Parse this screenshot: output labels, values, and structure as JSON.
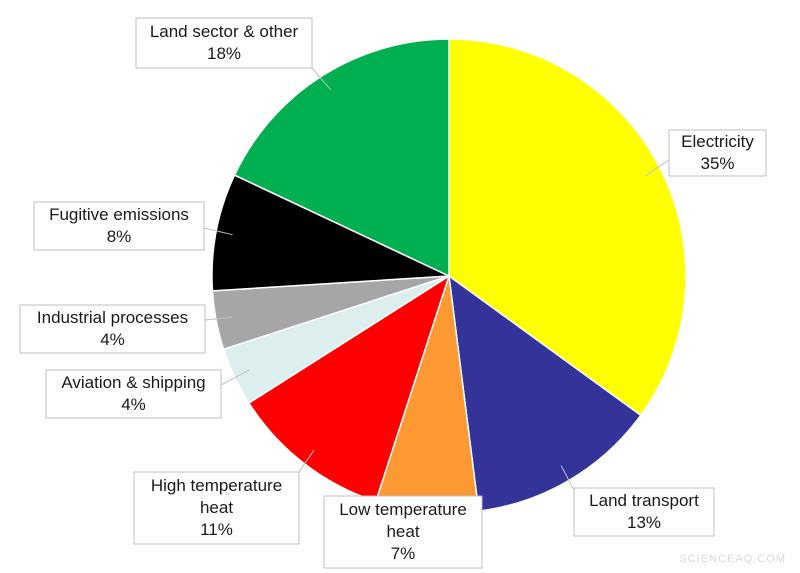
{
  "chart_data": {
    "type": "pie",
    "start_angle_deg": 0,
    "direction": "clockwise",
    "slices": [
      {
        "label": "Electricity",
        "value": 35,
        "value_label": "35%",
        "color": "#ffff00"
      },
      {
        "label": "Land transport",
        "value": 13,
        "value_label": "13%",
        "color": "#333399"
      },
      {
        "label": "Low temperature heat",
        "value": 7,
        "value_label": "7%",
        "color": "#ff9933"
      },
      {
        "label": "High temperature heat",
        "value": 11,
        "value_label": "11%",
        "color": "#ff0000"
      },
      {
        "label": "Aviation & shipping",
        "value": 4,
        "value_label": "4%",
        "color": "#ddeeee"
      },
      {
        "label": "Industrial processes",
        "value": 4,
        "value_label": "4%",
        "color": "#a6a6a6"
      },
      {
        "label": "Fugitive emissions",
        "value": 8,
        "value_label": "8%",
        "color": "#000000"
      },
      {
        "label": "Land sector & other",
        "value": 18,
        "value_label": "18%",
        "color": "#00b050"
      }
    ]
  },
  "watermark": "SCIENCEAQ.COM"
}
